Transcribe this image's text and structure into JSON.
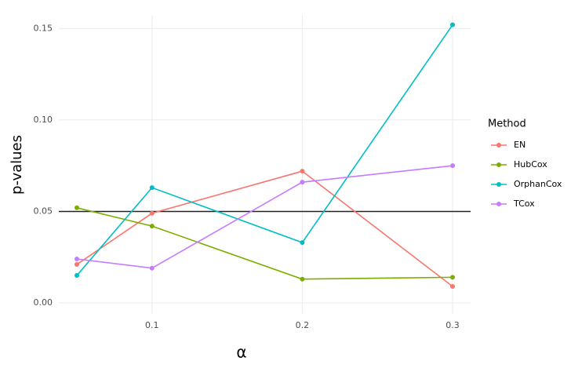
{
  "chart_data": {
    "type": "line",
    "x_label": "α",
    "y_label": "p-values",
    "legend_title": "Method",
    "x": [
      0.05,
      0.1,
      0.2,
      0.3
    ],
    "series": [
      {
        "name": "EN",
        "color": "#F8766D",
        "values": [
          0.021,
          0.049,
          0.072,
          0.009
        ]
      },
      {
        "name": "HubCox",
        "color": "#7CAE00",
        "values": [
          0.052,
          0.042,
          0.013,
          0.014
        ]
      },
      {
        "name": "OrphanCox",
        "color": "#00BFC4",
        "values": [
          0.015,
          0.063,
          0.033,
          0.152
        ]
      },
      {
        "name": "TCox",
        "color": "#C77CFF",
        "values": [
          0.024,
          0.019,
          0.066,
          0.075
        ]
      }
    ],
    "xlim": [
      0.038,
      0.312
    ],
    "xticks": [
      0.1,
      0.2,
      0.3
    ],
    "ylim": [
      -0.006,
      0.157
    ],
    "yticks": [
      {
        "value": 0,
        "label": "0.00"
      },
      0.05,
      {
        "value": 0.1,
        "label": "0.10"
      },
      0.15
    ],
    "hline": 0.05,
    "grid": true,
    "legend": "right"
  }
}
